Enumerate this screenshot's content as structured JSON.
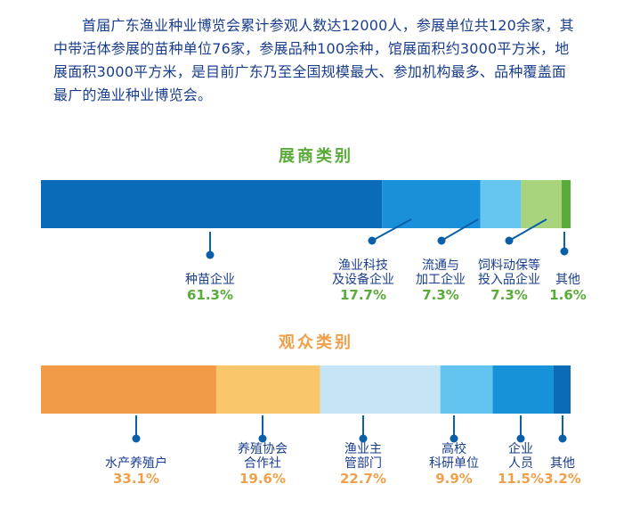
{
  "intro_text": "首届广东渔业种业博览会累计参观人数达12000人，参展单位共120余家，其中带活体参展的苗种单位76家，参展品种100余种，馆展面积约3000平方米，地展面积3000平方米，是目前广东乃至全国规模最大、参加机构最多、品种覆盖面最广的渔业种业博览会。",
  "chart_data": [
    {
      "type": "bar",
      "orientation": "horizontal-stacked",
      "title": "展商类别",
      "title_color": "#5aab3a",
      "value_color": "#5aab3a",
      "unit": "%",
      "series": [
        {
          "label_lines": [
            "种苗企业"
          ],
          "value": 61.3,
          "value_text": "61.3%",
          "color": "#0a6cb8"
        },
        {
          "label_lines": [
            "渔业科技",
            "及设备企业"
          ],
          "value": 17.7,
          "value_text": "17.7%",
          "color": "#1a90db"
        },
        {
          "label_lines": [
            "流通与",
            "加工企业"
          ],
          "value": 7.3,
          "value_text": "7.3%",
          "color": "#66c6f0"
        },
        {
          "label_lines": [
            "饲料动保等",
            "投入品企业"
          ],
          "value": 7.3,
          "value_text": "7.3%",
          "color": "#a8d47e"
        },
        {
          "label_lines": [
            "其他"
          ],
          "value": 1.6,
          "value_text": "1.6%",
          "color": "#5aab3a"
        }
      ]
    },
    {
      "type": "bar",
      "orientation": "horizontal-stacked",
      "title": "观众类别",
      "title_color": "#f0a04a",
      "value_color": "#f0a04a",
      "unit": "%",
      "series": [
        {
          "label_lines": [
            "水产养殖户"
          ],
          "value": 33.1,
          "value_text": "33.1%",
          "color": "#f29b46"
        },
        {
          "label_lines": [
            "养殖协会",
            "合作社"
          ],
          "value": 19.6,
          "value_text": "19.6%",
          "color": "#f9c66b"
        },
        {
          "label_lines": [
            "渔业主",
            "管部门"
          ],
          "value": 22.7,
          "value_text": "22.7%",
          "color": "#c5e5f6"
        },
        {
          "label_lines": [
            "高校",
            "科研单位"
          ],
          "value": 9.9,
          "value_text": "9.9%",
          "color": "#63c4ef"
        },
        {
          "label_lines": [
            "企业",
            "人员"
          ],
          "value": 11.5,
          "value_text": "11.5%",
          "color": "#1592d9"
        },
        {
          "label_lines": [
            "其他"
          ],
          "value": 3.2,
          "value_text": "3.2%",
          "color": "#0b6bb6"
        }
      ]
    }
  ]
}
